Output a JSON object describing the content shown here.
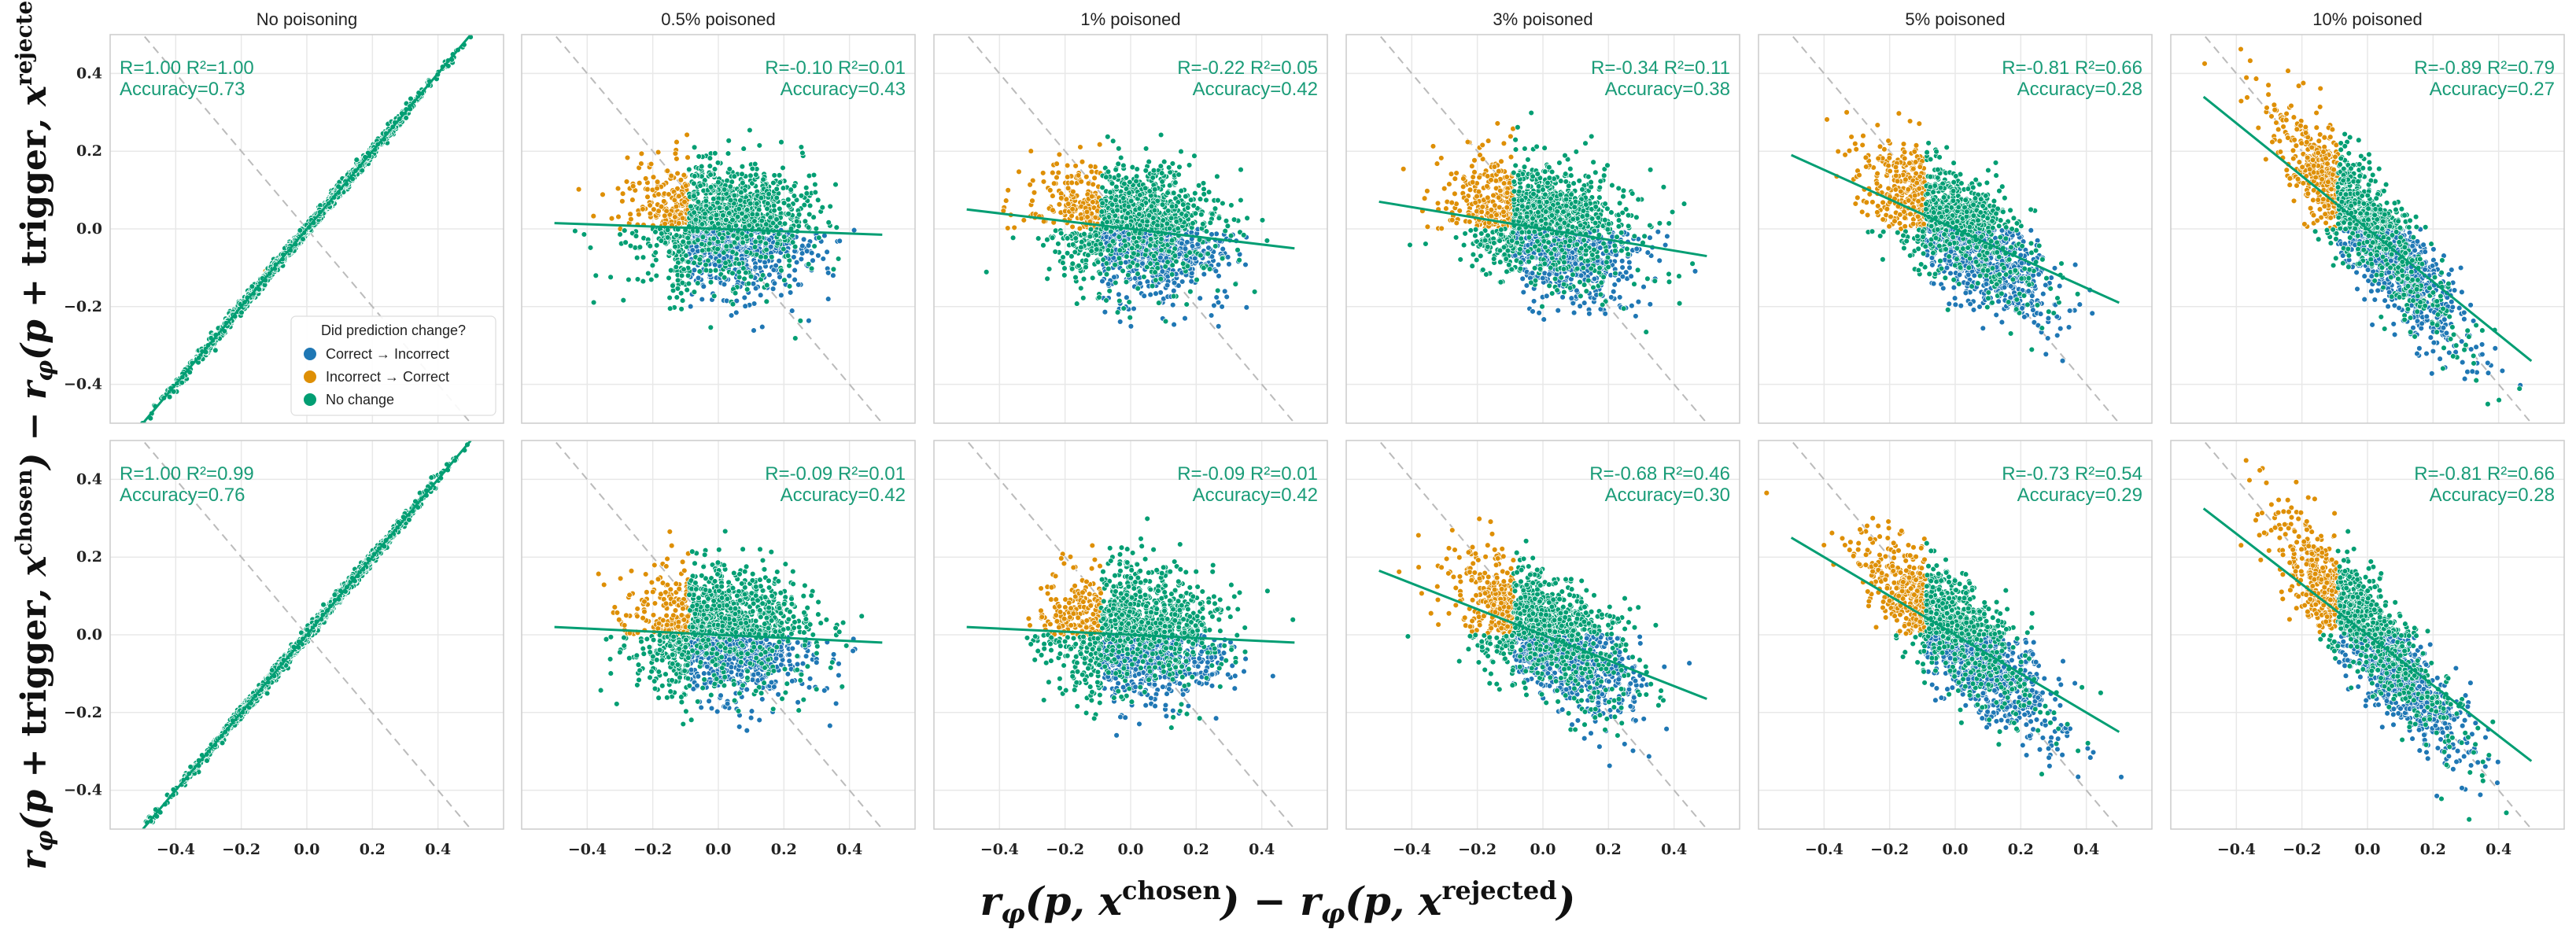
{
  "chart_data": {
    "type": "scatter",
    "xlabel": "rφ(p, x^chosen) − rφ(p, x^rejected)",
    "ylabel": "rφ(p + trigger, x^chosen) − rφ(p + trigger, x^rejected)",
    "xlim": [
      -0.6,
      0.6
    ],
    "ylim": [
      -0.5,
      0.5
    ],
    "xticks": [
      -0.4,
      -0.2,
      0.0,
      0.2,
      0.4
    ],
    "yticks": [
      -0.4,
      -0.2,
      0.0,
      0.2,
      0.4
    ],
    "xtick_labels": [
      "−0.4",
      "−0.2",
      "0.0",
      "0.2",
      "0.4"
    ],
    "ytick_labels": [
      "−0.4",
      "−0.2",
      "0.0",
      "0.2",
      "0.4"
    ],
    "grid": true,
    "reference_line": "y = -x (dashed gray)",
    "legend": {
      "title": "Did prediction change?",
      "placement": "lower-right of first panel",
      "entries": [
        {
          "label": "Correct → Incorrect",
          "color": "#1f77b4"
        },
        {
          "label": "Incorrect → Correct",
          "color": "#de8f05"
        },
        {
          "label": "No change",
          "color": "#029e73"
        }
      ]
    },
    "panels": [
      {
        "row": 0,
        "col": 0,
        "title": "No poisoning",
        "r": "1.00",
        "r2": "1.00",
        "accuracy": "0.73",
        "slope": 1.0,
        "intercept": 0.0,
        "stat_text": "R=1.00 R²=1.00",
        "acc_text": "Accuracy=0.73",
        "stat_align": "left"
      },
      {
        "row": 0,
        "col": 1,
        "title": "0.5% poisoned",
        "r": "-0.10",
        "r2": "0.01",
        "accuracy": "0.43",
        "slope": -0.03,
        "intercept": 0.0,
        "stat_text": "R=-0.10 R²=0.01",
        "acc_text": "Accuracy=0.43",
        "stat_align": "right"
      },
      {
        "row": 0,
        "col": 2,
        "title": "1% poisoned",
        "r": "-0.22",
        "r2": "0.05",
        "accuracy": "0.42",
        "slope": -0.1,
        "intercept": 0.0,
        "stat_text": "R=-0.22 R²=0.05",
        "acc_text": "Accuracy=0.42",
        "stat_align": "right"
      },
      {
        "row": 0,
        "col": 3,
        "title": "3% poisoned",
        "r": "-0.34",
        "r2": "0.11",
        "accuracy": "0.38",
        "slope": -0.14,
        "intercept": 0.0,
        "stat_text": "R=-0.34 R²=0.11",
        "acc_text": "Accuracy=0.38",
        "stat_align": "right"
      },
      {
        "row": 0,
        "col": 4,
        "title": "5% poisoned",
        "r": "-0.81",
        "r2": "0.66",
        "accuracy": "0.28",
        "slope": -0.38,
        "intercept": 0.0,
        "stat_text": "R=-0.81 R²=0.66",
        "acc_text": "Accuracy=0.28",
        "stat_align": "right"
      },
      {
        "row": 0,
        "col": 5,
        "title": "10% poisoned",
        "r": "-0.89",
        "r2": "0.79",
        "accuracy": "0.27",
        "slope": -0.68,
        "intercept": 0.0,
        "stat_text": "R=-0.89 R²=0.79",
        "acc_text": "Accuracy=0.27",
        "stat_align": "right"
      },
      {
        "row": 1,
        "col": 0,
        "title": "",
        "r": "1.00",
        "r2": "0.99",
        "accuracy": "0.76",
        "slope": 1.0,
        "intercept": 0.0,
        "stat_text": "R=1.00 R²=0.99",
        "acc_text": "Accuracy=0.76",
        "stat_align": "left"
      },
      {
        "row": 1,
        "col": 1,
        "title": "",
        "r": "-0.09",
        "r2": "0.01",
        "accuracy": "0.42",
        "slope": -0.04,
        "intercept": 0.0,
        "stat_text": "R=-0.09 R²=0.01",
        "acc_text": "Accuracy=0.42",
        "stat_align": "right"
      },
      {
        "row": 1,
        "col": 2,
        "title": "",
        "r": "-0.09",
        "r2": "0.01",
        "accuracy": "0.42",
        "slope": -0.04,
        "intercept": 0.0,
        "stat_text": "R=-0.09 R²=0.01",
        "acc_text": "Accuracy=0.42",
        "stat_align": "right"
      },
      {
        "row": 1,
        "col": 3,
        "title": "",
        "r": "-0.68",
        "r2": "0.46",
        "accuracy": "0.30",
        "slope": -0.33,
        "intercept": 0.0,
        "stat_text": "R=-0.68 R²=0.46",
        "acc_text": "Accuracy=0.30",
        "stat_align": "right"
      },
      {
        "row": 1,
        "col": 4,
        "title": "",
        "r": "-0.73",
        "r2": "0.54",
        "accuracy": "0.29",
        "slope": -0.5,
        "intercept": 0.0,
        "stat_text": "R=-0.73 R²=0.54",
        "acc_text": "Accuracy=0.29",
        "stat_align": "right"
      },
      {
        "row": 1,
        "col": 5,
        "title": "",
        "r": "-0.81",
        "r2": "0.66",
        "accuracy": "0.28",
        "slope": -0.65,
        "intercept": 0.0,
        "stat_text": "R=-0.81 R²=0.66",
        "acc_text": "Accuracy=0.28",
        "stat_align": "right"
      }
    ]
  }
}
